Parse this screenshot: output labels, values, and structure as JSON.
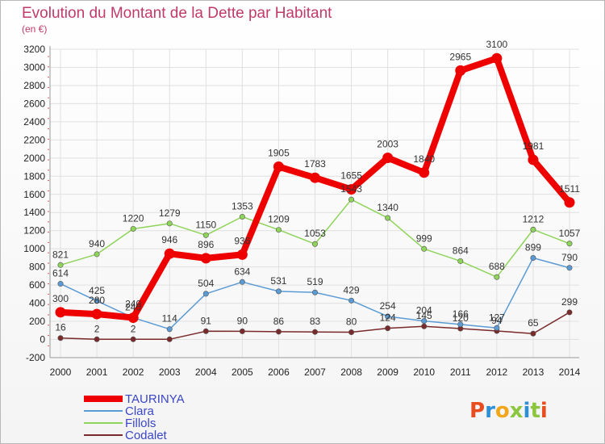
{
  "chart_data": {
    "type": "line",
    "title": "Evolution du Montant de la Dette par Habitant",
    "subtitle": "(en €)",
    "x": [
      2000,
      2001,
      2002,
      2003,
      2004,
      2005,
      2006,
      2007,
      2008,
      2009,
      2010,
      2011,
      2012,
      2013,
      2014
    ],
    "yticks": [
      -200,
      0,
      200,
      400,
      600,
      800,
      1000,
      1200,
      1400,
      1600,
      1800,
      2000,
      2200,
      2400,
      2600,
      2800,
      3000,
      3200
    ],
    "ylim": [
      -200,
      3200
    ],
    "grid": true,
    "legend_position": "bottom-left",
    "series": [
      {
        "name": "TAURINYA",
        "color": "#ee0000",
        "values": [
          300,
          280,
          240,
          946,
          896,
          936,
          1905,
          1783,
          1655,
          2003,
          1840,
          2965,
          3100,
          1981,
          1511
        ],
        "labels": [
          "300",
          "280",
          "240",
          "946",
          "896",
          "936",
          "1905",
          "1783",
          "1655",
          "2003",
          "1840",
          "2965",
          "3100",
          "1981",
          "1511"
        ]
      },
      {
        "name": "Clara",
        "color": "#5b9bd5",
        "values": [
          614,
          425,
          240,
          114,
          504,
          634,
          531,
          519,
          429,
          254,
          204,
          166,
          127,
          899,
          790
        ],
        "labels": [
          "614",
          "425",
          "240",
          "114",
          "504",
          "634",
          "531",
          "519",
          "429",
          "254",
          "204",
          "166",
          "127",
          "899",
          "790"
        ]
      },
      {
        "name": "Fillols",
        "color": "#8fd45a",
        "values": [
          821,
          940,
          1220,
          1279,
          1150,
          1353,
          1209,
          1053,
          1543,
          1340,
          999,
          864,
          688,
          1212,
          1057
        ],
        "labels": [
          "821",
          "940",
          "1220",
          "1279",
          "1150",
          "1353",
          "1209",
          "1053",
          "1543",
          "1340",
          "999",
          "864",
          "688",
          "1212",
          "1057"
        ]
      },
      {
        "name": "Codalet",
        "color": "#7a2a2a",
        "values": [
          16,
          2,
          2,
          2,
          91,
          90,
          86,
          83,
          80,
          124,
          145,
          120,
          94,
          65,
          299
        ],
        "labels": [
          "16",
          "2",
          "2",
          "",
          "91",
          "90",
          "86",
          "83",
          "80",
          "124",
          "145",
          "120",
          "94",
          "65",
          "299"
        ]
      }
    ]
  },
  "logo": {
    "text": "Proxiti"
  }
}
